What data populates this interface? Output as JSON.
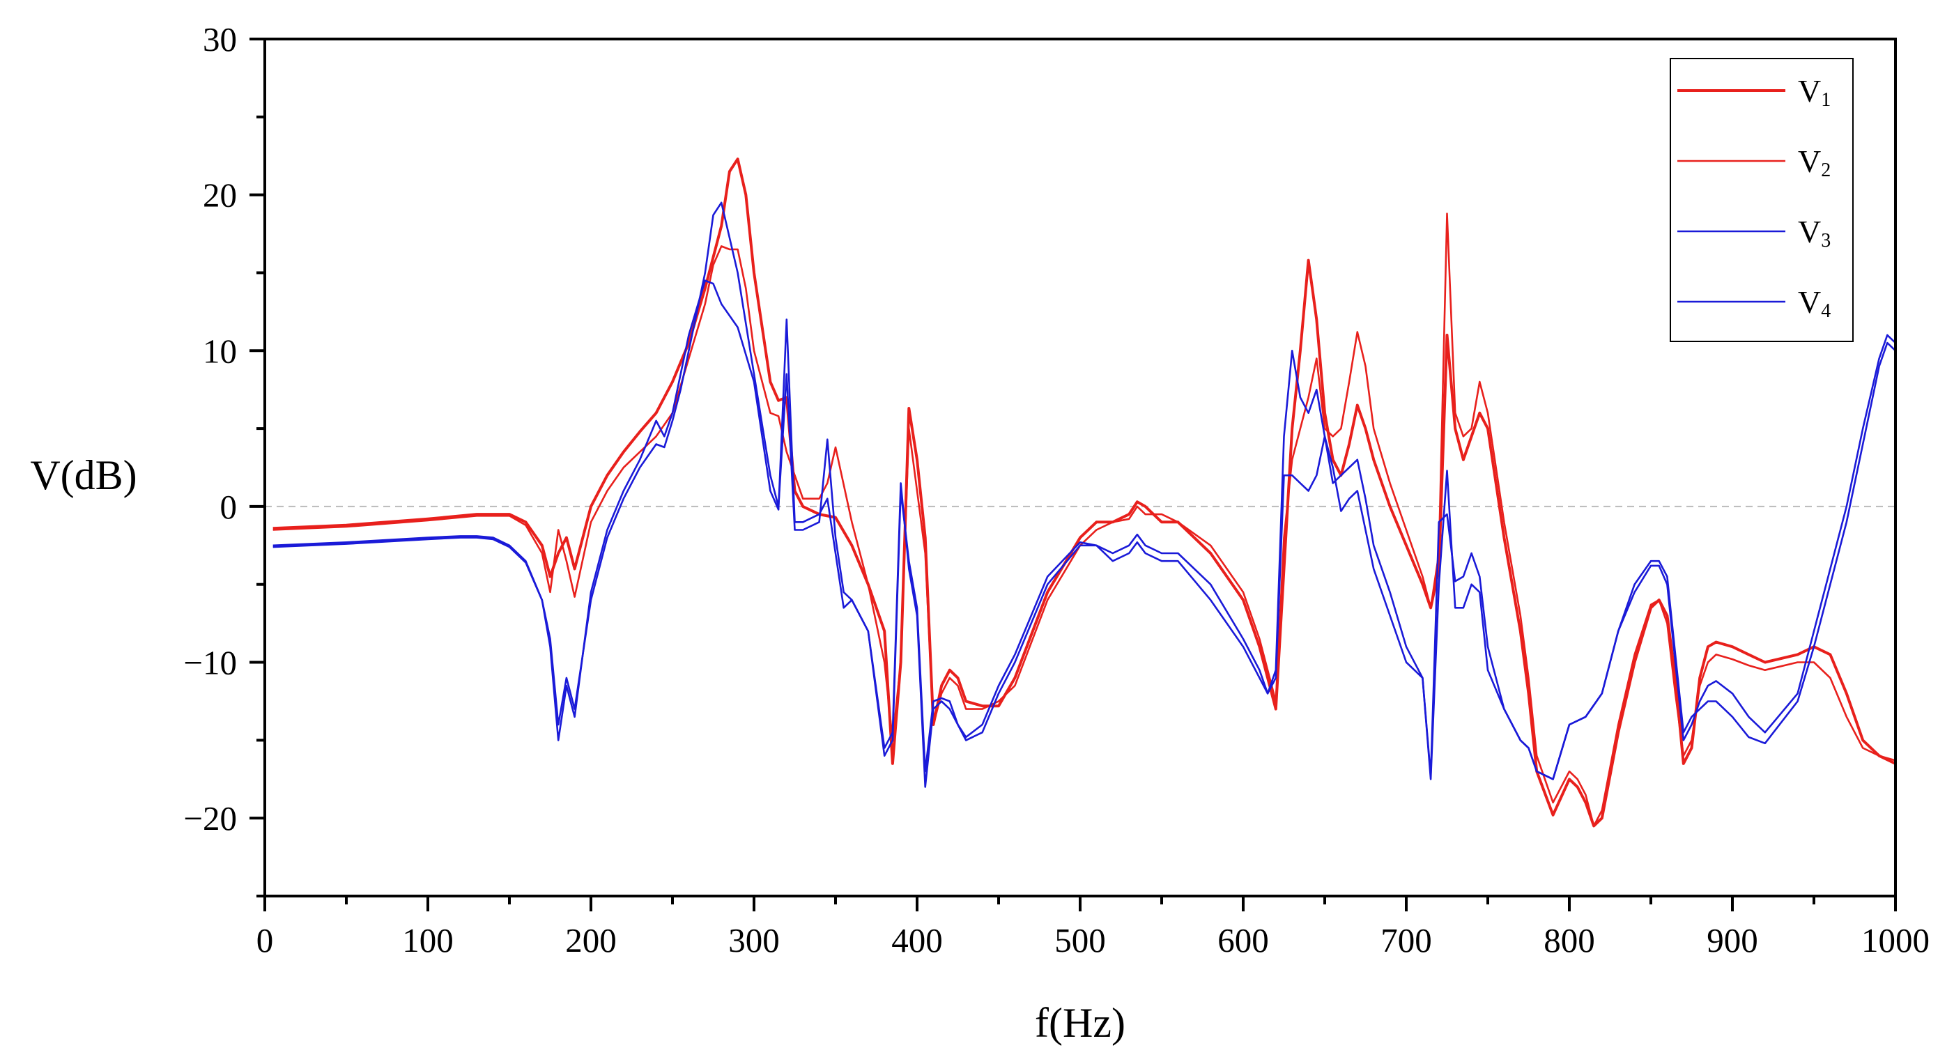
{
  "chart_data": {
    "type": "line",
    "xlabel": "f(Hz)",
    "ylabel": "V(dB)",
    "xlim": [
      0,
      1000
    ],
    "ylim": [
      -25,
      30
    ],
    "xticks": [
      0,
      100,
      200,
      300,
      400,
      500,
      600,
      700,
      800,
      900,
      1000
    ],
    "yticks": [
      -20,
      -10,
      0,
      10,
      20,
      30
    ],
    "xtick_labels": [
      "0",
      "100",
      "200",
      "300",
      "400",
      "500",
      "600",
      "700",
      "800",
      "900",
      "1000"
    ],
    "ytick_labels": [
      "−20",
      "−10",
      "0",
      "10",
      "20",
      "30"
    ],
    "reference_line": {
      "y": 0,
      "style": "dashed",
      "color": "#bbbbbb"
    },
    "legend": {
      "position": "top-right"
    },
    "series": [
      {
        "name": "V1",
        "label_main": "V",
        "label_sub": "1",
        "color": "#e8201c",
        "stroke": "thick",
        "x": [
          5,
          50,
          100,
          130,
          150,
          160,
          170,
          175,
          180,
          185,
          190,
          200,
          210,
          220,
          230,
          240,
          250,
          260,
          270,
          280,
          285,
          290,
          295,
          300,
          310,
          315,
          320,
          325,
          330,
          340,
          350,
          360,
          370,
          380,
          385,
          390,
          395,
          400,
          405,
          410,
          415,
          420,
          425,
          430,
          440,
          450,
          460,
          480,
          500,
          510,
          520,
          530,
          535,
          540,
          550,
          560,
          580,
          600,
          610,
          620,
          625,
          630,
          635,
          640,
          645,
          650,
          655,
          660,
          665,
          670,
          675,
          680,
          690,
          700,
          710,
          715,
          720,
          725,
          730,
          735,
          740,
          745,
          750,
          760,
          770,
          775,
          780,
          790,
          800,
          805,
          810,
          815,
          820,
          830,
          840,
          850,
          855,
          860,
          865,
          870,
          875,
          880,
          885,
          890,
          900,
          910,
          920,
          940,
          950,
          960,
          970,
          980,
          990,
          1000
        ],
        "y": [
          -1.4,
          -1.2,
          -0.8,
          -0.5,
          -0.5,
          -1.0,
          -2.5,
          -4.5,
          -3.0,
          -2.0,
          -4.0,
          0.0,
          2.0,
          3.5,
          4.8,
          6.0,
          8.0,
          10.5,
          14.0,
          18.0,
          21.5,
          22.3,
          20.0,
          15.0,
          8.0,
          6.8,
          7.0,
          1.0,
          0.0,
          -0.5,
          -0.7,
          -2.5,
          -5.0,
          -8.0,
          -16.5,
          -10.0,
          6.3,
          3.0,
          -2.0,
          -14.0,
          -11.5,
          -10.5,
          -11.0,
          -12.5,
          -12.8,
          -12.8,
          -11.0,
          -5.5,
          -2.0,
          -1.0,
          -1.0,
          -0.5,
          0.3,
          0.0,
          -1.0,
          -1.0,
          -3.0,
          -6.0,
          -9.0,
          -13.0,
          -4.0,
          5.0,
          10.0,
          15.8,
          12.0,
          6.0,
          3.0,
          2.0,
          4.0,
          6.5,
          5.0,
          3.0,
          0.0,
          -2.5,
          -5.0,
          -6.5,
          -4.0,
          11.0,
          5.0,
          3.0,
          4.5,
          6.0,
          5.0,
          -2.0,
          -8.0,
          -12.0,
          -17.0,
          -19.8,
          -17.5,
          -18.0,
          -19.0,
          -20.5,
          -20.0,
          -14.5,
          -10.0,
          -6.5,
          -6.0,
          -7.0,
          -11.0,
          -16.5,
          -15.5,
          -11.0,
          -9.0,
          -8.7,
          -9.0,
          -9.5,
          -10.0,
          -9.5,
          -9.0,
          -9.5,
          -12.0,
          -15.0,
          -16.0,
          -16.5
        ]
      },
      {
        "name": "V2",
        "label_main": "V",
        "label_sub": "2",
        "color": "#e8201c",
        "stroke": "thin",
        "x": [
          5,
          50,
          100,
          130,
          150,
          160,
          170,
          175,
          180,
          185,
          190,
          200,
          210,
          220,
          230,
          240,
          250,
          260,
          270,
          275,
          280,
          285,
          290,
          295,
          300,
          310,
          315,
          320,
          325,
          330,
          340,
          345,
          350,
          360,
          370,
          380,
          385,
          390,
          395,
          400,
          405,
          410,
          415,
          420,
          425,
          430,
          440,
          450,
          460,
          480,
          500,
          510,
          520,
          530,
          535,
          540,
          550,
          560,
          580,
          600,
          610,
          620,
          625,
          630,
          635,
          640,
          645,
          650,
          655,
          660,
          665,
          670,
          675,
          680,
          690,
          700,
          710,
          715,
          720,
          725,
          730,
          735,
          740,
          745,
          750,
          760,
          770,
          775,
          780,
          790,
          800,
          805,
          810,
          815,
          820,
          830,
          840,
          850,
          855,
          860,
          865,
          870,
          875,
          880,
          885,
          890,
          900,
          910,
          920,
          940,
          950,
          960,
          970,
          980,
          990,
          1000
        ],
        "y": [
          -1.5,
          -1.3,
          -0.9,
          -0.6,
          -0.6,
          -1.2,
          -3.0,
          -5.5,
          -1.5,
          -3.5,
          -5.8,
          -1.0,
          1.0,
          2.5,
          3.5,
          4.5,
          6.0,
          9.5,
          13.0,
          15.5,
          16.7,
          16.5,
          16.5,
          14.0,
          10.0,
          6.0,
          5.8,
          3.5,
          2.0,
          0.5,
          0.5,
          1.5,
          3.8,
          -1.0,
          -5.0,
          -10.0,
          -15.0,
          -10.0,
          5.0,
          1.0,
          -3.0,
          -14.0,
          -12.0,
          -11.0,
          -11.5,
          -13.0,
          -13.0,
          -12.5,
          -11.5,
          -6.0,
          -2.5,
          -1.5,
          -1.0,
          -0.8,
          0.0,
          -0.5,
          -0.5,
          -1.0,
          -2.5,
          -5.5,
          -8.5,
          -12.5,
          -2.0,
          3.0,
          5.0,
          7.0,
          9.5,
          5.0,
          4.5,
          5.0,
          8.0,
          11.2,
          9.0,
          5.0,
          1.5,
          -1.5,
          -4.5,
          -6.5,
          -3.0,
          18.8,
          6.0,
          4.5,
          5.0,
          8.0,
          6.0,
          -1.0,
          -7.0,
          -11.0,
          -16.0,
          -19.0,
          -17.0,
          -17.5,
          -18.5,
          -20.5,
          -19.5,
          -14.0,
          -9.5,
          -6.3,
          -6.0,
          -7.5,
          -12.0,
          -16.0,
          -15.0,
          -11.5,
          -10.0,
          -9.5,
          -9.8,
          -10.2,
          -10.5,
          -10.0,
          -10.0,
          -11.0,
          -13.5,
          -15.5,
          -16.0,
          -16.3
        ]
      },
      {
        "name": "V3",
        "label_main": "V",
        "label_sub": "3",
        "color": "#1a1ad8",
        "stroke": "thin",
        "x": [
          5,
          50,
          100,
          120,
          130,
          140,
          150,
          160,
          170,
          175,
          180,
          185,
          190,
          200,
          210,
          220,
          230,
          240,
          245,
          250,
          255,
          260,
          270,
          275,
          280,
          290,
          300,
          310,
          315,
          320,
          325,
          330,
          340,
          345,
          350,
          355,
          360,
          370,
          380,
          385,
          390,
          395,
          400,
          405,
          410,
          415,
          420,
          425,
          430,
          440,
          450,
          460,
          480,
          500,
          510,
          520,
          530,
          535,
          540,
          550,
          560,
          580,
          600,
          610,
          615,
          620,
          625,
          630,
          635,
          640,
          645,
          650,
          655,
          660,
          665,
          670,
          675,
          680,
          690,
          700,
          710,
          715,
          720,
          725,
          730,
          735,
          740,
          745,
          750,
          760,
          770,
          775,
          780,
          790,
          800,
          810,
          820,
          830,
          840,
          850,
          855,
          860,
          865,
          870,
          875,
          880,
          885,
          890,
          900,
          910,
          920,
          940,
          950,
          960,
          970,
          980,
          990,
          995,
          1000
        ],
        "y": [
          -2.5,
          -2.3,
          -2.0,
          -1.9,
          -1.9,
          -2.0,
          -2.5,
          -3.5,
          -6.0,
          -9.0,
          -15.0,
          -11.5,
          -13.5,
          -5.5,
          -1.5,
          1.0,
          3.0,
          5.5,
          4.5,
          6.0,
          8.5,
          11.0,
          14.5,
          14.3,
          13.0,
          11.5,
          8.0,
          1.0,
          -0.2,
          12.0,
          -1.0,
          -1.0,
          -0.5,
          0.5,
          -3.0,
          -6.5,
          -6.0,
          -8.0,
          -15.5,
          -14.5,
          1.5,
          -4.0,
          -7.0,
          -18.0,
          -13.0,
          -12.5,
          -13.0,
          -14.0,
          -15.0,
          -14.5,
          -12.0,
          -10.0,
          -5.0,
          -2.5,
          -2.5,
          -3.0,
          -2.5,
          -1.8,
          -2.5,
          -3.0,
          -3.0,
          -5.0,
          -8.5,
          -10.5,
          -12.0,
          -10.5,
          4.5,
          10.0,
          7.0,
          6.0,
          7.5,
          4.5,
          1.5,
          2.0,
          2.5,
          3.0,
          0.5,
          -2.5,
          -5.5,
          -9.0,
          -11.0,
          -17.5,
          -5.0,
          2.3,
          -6.5,
          -6.5,
          -5.0,
          -5.5,
          -10.5,
          -13.0,
          -15.0,
          -15.5,
          -17.0,
          -17.5,
          -14.0,
          -13.5,
          -12.0,
          -8.0,
          -5.5,
          -3.8,
          -3.8,
          -5.0,
          -10.0,
          -15.0,
          -14.0,
          -12.5,
          -11.5,
          -11.2,
          -12.0,
          -13.5,
          -14.5,
          -12.0,
          -8.0,
          -4.0,
          0.0,
          5.0,
          9.5,
          11.0,
          10.5
        ]
      },
      {
        "name": "V4",
        "label_main": "V",
        "label_sub": "4",
        "color": "#1a1ad8",
        "stroke": "thin",
        "x": [
          5,
          50,
          100,
          120,
          130,
          140,
          150,
          160,
          170,
          175,
          180,
          185,
          190,
          200,
          210,
          220,
          230,
          240,
          245,
          250,
          255,
          260,
          270,
          275,
          280,
          290,
          300,
          310,
          315,
          320,
          325,
          330,
          340,
          345,
          350,
          355,
          360,
          370,
          380,
          385,
          390,
          395,
          400,
          405,
          410,
          415,
          420,
          425,
          430,
          440,
          450,
          460,
          480,
          500,
          510,
          520,
          530,
          535,
          540,
          550,
          560,
          580,
          600,
          610,
          615,
          620,
          625,
          630,
          635,
          640,
          645,
          650,
          655,
          660,
          665,
          670,
          675,
          680,
          690,
          700,
          710,
          715,
          720,
          725,
          730,
          735,
          740,
          745,
          750,
          760,
          770,
          775,
          780,
          790,
          800,
          810,
          820,
          830,
          840,
          850,
          855,
          860,
          865,
          870,
          875,
          880,
          885,
          890,
          900,
          910,
          920,
          940,
          950,
          960,
          970,
          980,
          990,
          995,
          1000
        ],
        "y": [
          -2.6,
          -2.4,
          -2.1,
          -2.0,
          -2.0,
          -2.1,
          -2.6,
          -3.6,
          -6.0,
          -8.5,
          -14.0,
          -11.0,
          -13.0,
          -6.0,
          -2.0,
          0.5,
          2.5,
          4.0,
          3.8,
          5.5,
          7.5,
          10.0,
          15.0,
          18.7,
          19.5,
          15.0,
          8.5,
          2.0,
          0.0,
          8.5,
          -1.5,
          -1.5,
          -1.0,
          4.3,
          -2.0,
          -5.5,
          -6.0,
          -8.0,
          -16.0,
          -15.0,
          1.0,
          -3.5,
          -6.5,
          -17.0,
          -12.5,
          -12.3,
          -12.5,
          -14.0,
          -14.8,
          -14.0,
          -11.5,
          -9.5,
          -4.5,
          -2.3,
          -2.5,
          -3.5,
          -3.0,
          -2.3,
          -3.0,
          -3.5,
          -3.5,
          -6.0,
          -9.0,
          -11.0,
          -12.0,
          -11.0,
          2.0,
          2.0,
          1.5,
          1.0,
          2.0,
          4.5,
          2.5,
          -0.3,
          0.5,
          1.0,
          -1.5,
          -4.0,
          -7.0,
          -10.0,
          -11.0,
          -17.3,
          -1.0,
          -0.5,
          -4.8,
          -4.5,
          -3.0,
          -4.5,
          -9.0,
          -13.0,
          -15.0,
          -15.5,
          -17.0,
          -17.5,
          -14.0,
          -13.5,
          -12.0,
          -8.0,
          -5.0,
          -3.5,
          -3.5,
          -4.5,
          -9.5,
          -14.5,
          -13.5,
          -13.0,
          -12.5,
          -12.5,
          -13.5,
          -14.8,
          -15.2,
          -12.5,
          -9.0,
          -5.0,
          -1.0,
          4.0,
          9.0,
          10.5,
          10.0
        ]
      }
    ]
  }
}
